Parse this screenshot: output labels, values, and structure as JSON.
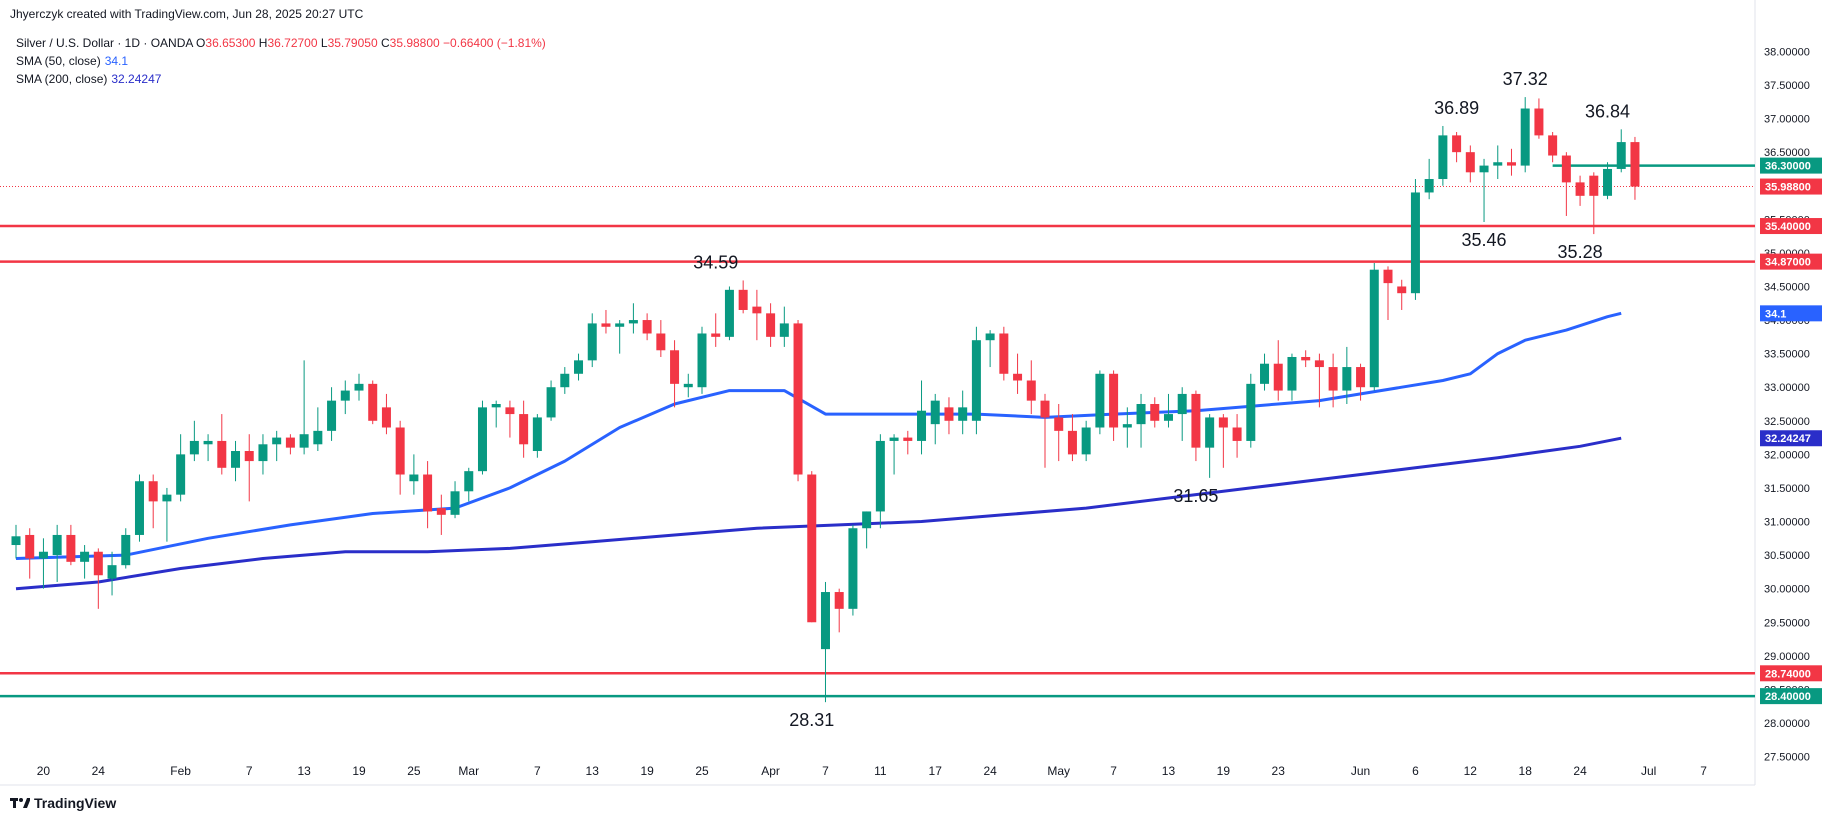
{
  "header": {
    "credit": "Jhyerczyk created with TradingView.com, Jun 28, 2025 20:27 UTC"
  },
  "legend": {
    "symbol": "Silver / U.S. Dollar · 1D · OANDA",
    "o_label": "O",
    "o_value": "36.65300",
    "h_label": "H",
    "h_value": "36.72700",
    "l_label": "L",
    "l_value": "35.79050",
    "c_label": "C",
    "c_value": "35.98800",
    "change": "−0.66400 (−1.81%)",
    "sma50_label": "SMA (50, close)",
    "sma50_value": "34.1",
    "sma200_label": "SMA (200, close)",
    "sma200_value": "32.24247"
  },
  "footer": {
    "logo_text": "TradingView"
  },
  "colors": {
    "up": "#089981",
    "down": "#f23645",
    "sma50": "#2962ff",
    "sma200": "#2a2ec9",
    "support": "#f23645",
    "teal_line": "#089981",
    "grid": "#f0f3fa",
    "text": "#131722"
  },
  "chart_data": {
    "type": "candlestick",
    "ylim": [
      27.3,
      38.2
    ],
    "y_ticks": [
      "27.50000",
      "28.00000",
      "28.50000",
      "29.00000",
      "29.50000",
      "30.00000",
      "30.50000",
      "31.00000",
      "31.50000",
      "32.00000",
      "32.50000",
      "33.00000",
      "33.50000",
      "34.00000",
      "34.50000",
      "35.00000",
      "35.50000",
      "36.00000",
      "36.50000",
      "37.00000",
      "37.50000",
      "38.00000"
    ],
    "x_ticks": [
      {
        "label": "20",
        "index": 2
      },
      {
        "label": "24",
        "index": 6
      },
      {
        "label": "Feb",
        "index": 12
      },
      {
        "label": "7",
        "index": 17
      },
      {
        "label": "13",
        "index": 21
      },
      {
        "label": "19",
        "index": 25
      },
      {
        "label": "25",
        "index": 29
      },
      {
        "label": "Mar",
        "index": 33
      },
      {
        "label": "7",
        "index": 38
      },
      {
        "label": "13",
        "index": 42
      },
      {
        "label": "19",
        "index": 46
      },
      {
        "label": "25",
        "index": 50
      },
      {
        "label": "Apr",
        "index": 55
      },
      {
        "label": "7",
        "index": 59
      },
      {
        "label": "11",
        "index": 63
      },
      {
        "label": "17",
        "index": 67
      },
      {
        "label": "24",
        "index": 71
      },
      {
        "label": "May",
        "index": 76
      },
      {
        "label": "7",
        "index": 80
      },
      {
        "label": "13",
        "index": 84
      },
      {
        "label": "19",
        "index": 88
      },
      {
        "label": "23",
        "index": 92
      },
      {
        "label": "Jun",
        "index": 98
      },
      {
        "label": "6",
        "index": 102
      },
      {
        "label": "12",
        "index": 106
      },
      {
        "label": "18",
        "index": 110
      },
      {
        "label": "24",
        "index": 114
      },
      {
        "label": "Jul",
        "index": 119
      },
      {
        "label": "7",
        "index": 123
      }
    ],
    "candles": [
      {
        "o": 30.65,
        "h": 30.95,
        "l": 30.45,
        "c": 30.78
      },
      {
        "o": 30.8,
        "h": 30.9,
        "l": 30.15,
        "c": 30.45
      },
      {
        "o": 30.45,
        "h": 30.75,
        "l": 30.0,
        "c": 30.55
      },
      {
        "o": 30.5,
        "h": 30.95,
        "l": 30.1,
        "c": 30.8
      },
      {
        "o": 30.8,
        "h": 30.95,
        "l": 30.35,
        "c": 30.4
      },
      {
        "o": 30.4,
        "h": 30.65,
        "l": 30.15,
        "c": 30.55
      },
      {
        "o": 30.55,
        "h": 30.6,
        "l": 29.7,
        "c": 30.2
      },
      {
        "o": 30.15,
        "h": 30.55,
        "l": 29.9,
        "c": 30.35
      },
      {
        "o": 30.35,
        "h": 30.9,
        "l": 30.3,
        "c": 30.8
      },
      {
        "o": 30.8,
        "h": 31.7,
        "l": 30.7,
        "c": 31.6
      },
      {
        "o": 31.6,
        "h": 31.7,
        "l": 30.9,
        "c": 31.3
      },
      {
        "o": 31.3,
        "h": 31.5,
        "l": 30.7,
        "c": 31.4
      },
      {
        "o": 31.4,
        "h": 32.3,
        "l": 31.3,
        "c": 32.0
      },
      {
        "o": 32.0,
        "h": 32.5,
        "l": 31.9,
        "c": 32.2
      },
      {
        "o": 32.15,
        "h": 32.3,
        "l": 31.9,
        "c": 32.2
      },
      {
        "o": 32.2,
        "h": 32.6,
        "l": 31.7,
        "c": 31.8
      },
      {
        "o": 31.8,
        "h": 32.2,
        "l": 31.6,
        "c": 32.05
      },
      {
        "o": 32.05,
        "h": 32.3,
        "l": 31.3,
        "c": 31.9
      },
      {
        "o": 31.9,
        "h": 32.3,
        "l": 31.7,
        "c": 32.15
      },
      {
        "o": 32.15,
        "h": 32.35,
        "l": 31.9,
        "c": 32.25
      },
      {
        "o": 32.25,
        "h": 32.3,
        "l": 32.0,
        "c": 32.1
      },
      {
        "o": 32.1,
        "h": 33.4,
        "l": 32.0,
        "c": 32.3
      },
      {
        "o": 32.15,
        "h": 32.7,
        "l": 32.05,
        "c": 32.35
      },
      {
        "o": 32.35,
        "h": 33.0,
        "l": 32.2,
        "c": 32.8
      },
      {
        "o": 32.8,
        "h": 33.1,
        "l": 32.6,
        "c": 32.95
      },
      {
        "o": 32.95,
        "h": 33.2,
        "l": 32.8,
        "c": 33.05
      },
      {
        "o": 33.05,
        "h": 33.1,
        "l": 32.45,
        "c": 32.5
      },
      {
        "o": 32.7,
        "h": 32.9,
        "l": 32.3,
        "c": 32.4
      },
      {
        "o": 32.4,
        "h": 32.5,
        "l": 31.4,
        "c": 31.7
      },
      {
        "o": 31.6,
        "h": 32.0,
        "l": 31.4,
        "c": 31.7
      },
      {
        "o": 31.7,
        "h": 31.9,
        "l": 30.9,
        "c": 31.15
      },
      {
        "o": 31.2,
        "h": 31.4,
        "l": 30.8,
        "c": 31.1
      },
      {
        "o": 31.1,
        "h": 31.6,
        "l": 31.05,
        "c": 31.45
      },
      {
        "o": 31.45,
        "h": 31.8,
        "l": 31.3,
        "c": 31.75
      },
      {
        "o": 31.75,
        "h": 32.8,
        "l": 31.7,
        "c": 32.7
      },
      {
        "o": 32.7,
        "h": 32.8,
        "l": 32.4,
        "c": 32.75
      },
      {
        "o": 32.7,
        "h": 32.8,
        "l": 32.25,
        "c": 32.6
      },
      {
        "o": 32.6,
        "h": 32.8,
        "l": 31.95,
        "c": 32.15
      },
      {
        "o": 32.05,
        "h": 32.6,
        "l": 31.95,
        "c": 32.55
      },
      {
        "o": 32.55,
        "h": 33.1,
        "l": 32.5,
        "c": 33.0
      },
      {
        "o": 33.0,
        "h": 33.3,
        "l": 32.9,
        "c": 33.2
      },
      {
        "o": 33.2,
        "h": 33.5,
        "l": 33.1,
        "c": 33.4
      },
      {
        "o": 33.4,
        "h": 34.1,
        "l": 33.3,
        "c": 33.95
      },
      {
        "o": 33.95,
        "h": 34.15,
        "l": 33.8,
        "c": 33.9
      },
      {
        "o": 33.9,
        "h": 34.0,
        "l": 33.5,
        "c": 33.95
      },
      {
        "o": 33.95,
        "h": 34.25,
        "l": 33.8,
        "c": 34.0
      },
      {
        "o": 34.0,
        "h": 34.1,
        "l": 33.7,
        "c": 33.8
      },
      {
        "o": 33.8,
        "h": 34.0,
        "l": 33.45,
        "c": 33.55
      },
      {
        "o": 33.55,
        "h": 33.7,
        "l": 32.7,
        "c": 33.05
      },
      {
        "o": 33.0,
        "h": 33.2,
        "l": 32.85,
        "c": 33.05
      },
      {
        "o": 33.0,
        "h": 33.9,
        "l": 32.9,
        "c": 33.8
      },
      {
        "o": 33.8,
        "h": 34.1,
        "l": 33.6,
        "c": 33.75
      },
      {
        "o": 33.75,
        "h": 34.5,
        "l": 33.7,
        "c": 34.45
      },
      {
        "o": 34.45,
        "h": 34.59,
        "l": 34.1,
        "c": 34.15
      },
      {
        "o": 34.2,
        "h": 34.45,
        "l": 33.7,
        "c": 34.1
      },
      {
        "o": 34.1,
        "h": 34.25,
        "l": 33.6,
        "c": 33.75
      },
      {
        "o": 33.75,
        "h": 34.2,
        "l": 33.6,
        "c": 33.95
      },
      {
        "o": 33.95,
        "h": 34.0,
        "l": 31.6,
        "c": 31.7
      },
      {
        "o": 31.7,
        "h": 31.75,
        "l": 29.5,
        "c": 29.5
      },
      {
        "o": 29.1,
        "h": 30.1,
        "l": 28.31,
        "c": 29.95
      },
      {
        "o": 29.95,
        "h": 30.0,
        "l": 29.35,
        "c": 29.7
      },
      {
        "o": 29.7,
        "h": 30.95,
        "l": 29.6,
        "c": 30.9
      },
      {
        "o": 30.9,
        "h": 31.15,
        "l": 30.6,
        "c": 31.15
      },
      {
        "o": 31.15,
        "h": 32.3,
        "l": 30.9,
        "c": 32.2
      },
      {
        "o": 32.2,
        "h": 32.3,
        "l": 31.7,
        "c": 32.25
      },
      {
        "o": 32.25,
        "h": 32.35,
        "l": 32.0,
        "c": 32.2
      },
      {
        "o": 32.2,
        "h": 33.1,
        "l": 32.0,
        "c": 32.65
      },
      {
        "o": 32.45,
        "h": 32.9,
        "l": 32.15,
        "c": 32.8
      },
      {
        "o": 32.7,
        "h": 32.85,
        "l": 32.3,
        "c": 32.5
      },
      {
        "o": 32.5,
        "h": 32.95,
        "l": 32.3,
        "c": 32.7
      },
      {
        "o": 32.5,
        "h": 33.9,
        "l": 32.3,
        "c": 33.7
      },
      {
        "o": 33.7,
        "h": 33.85,
        "l": 33.3,
        "c": 33.8
      },
      {
        "o": 33.8,
        "h": 33.9,
        "l": 33.1,
        "c": 33.2
      },
      {
        "o": 33.2,
        "h": 33.5,
        "l": 32.9,
        "c": 33.1
      },
      {
        "o": 33.1,
        "h": 33.4,
        "l": 32.6,
        "c": 32.8
      },
      {
        "o": 32.8,
        "h": 32.9,
        "l": 31.8,
        "c": 32.55
      },
      {
        "o": 32.55,
        "h": 32.75,
        "l": 31.9,
        "c": 32.35
      },
      {
        "o": 32.35,
        "h": 32.6,
        "l": 31.9,
        "c": 32.0
      },
      {
        "o": 32.0,
        "h": 32.5,
        "l": 31.9,
        "c": 32.4
      },
      {
        "o": 32.4,
        "h": 33.25,
        "l": 32.3,
        "c": 33.2
      },
      {
        "o": 33.2,
        "h": 33.25,
        "l": 32.2,
        "c": 32.4
      },
      {
        "o": 32.4,
        "h": 32.7,
        "l": 32.1,
        "c": 32.45
      },
      {
        "o": 32.45,
        "h": 32.9,
        "l": 32.1,
        "c": 32.75
      },
      {
        "o": 32.75,
        "h": 32.85,
        "l": 32.4,
        "c": 32.5
      },
      {
        "o": 32.5,
        "h": 32.9,
        "l": 32.4,
        "c": 32.6
      },
      {
        "o": 32.6,
        "h": 33.0,
        "l": 32.2,
        "c": 32.9
      },
      {
        "o": 32.9,
        "h": 32.95,
        "l": 31.9,
        "c": 32.1
      },
      {
        "o": 32.1,
        "h": 32.6,
        "l": 31.65,
        "c": 32.55
      },
      {
        "o": 32.55,
        "h": 32.6,
        "l": 31.8,
        "c": 32.4
      },
      {
        "o": 32.4,
        "h": 32.6,
        "l": 31.95,
        "c": 32.2
      },
      {
        "o": 32.2,
        "h": 33.2,
        "l": 32.1,
        "c": 33.05
      },
      {
        "o": 33.05,
        "h": 33.5,
        "l": 32.95,
        "c": 33.35
      },
      {
        "o": 33.35,
        "h": 33.7,
        "l": 32.8,
        "c": 32.95
      },
      {
        "o": 32.95,
        "h": 33.5,
        "l": 32.8,
        "c": 33.45
      },
      {
        "o": 33.45,
        "h": 33.55,
        "l": 33.3,
        "c": 33.4
      },
      {
        "o": 33.4,
        "h": 33.5,
        "l": 32.7,
        "c": 33.3
      },
      {
        "o": 33.3,
        "h": 33.5,
        "l": 32.7,
        "c": 32.95
      },
      {
        "o": 32.95,
        "h": 33.6,
        "l": 32.75,
        "c": 33.3
      },
      {
        "o": 33.3,
        "h": 33.35,
        "l": 32.8,
        "c": 33.0
      },
      {
        "o": 33.0,
        "h": 34.85,
        "l": 32.95,
        "c": 34.75
      },
      {
        "o": 34.75,
        "h": 34.8,
        "l": 34.0,
        "c": 34.55
      },
      {
        "o": 34.5,
        "h": 34.6,
        "l": 34.15,
        "c": 34.4
      },
      {
        "o": 34.4,
        "h": 36.1,
        "l": 34.3,
        "c": 35.9
      },
      {
        "o": 35.9,
        "h": 36.4,
        "l": 35.8,
        "c": 36.1
      },
      {
        "o": 36.1,
        "h": 36.89,
        "l": 36.0,
        "c": 36.75
      },
      {
        "o": 36.75,
        "h": 36.8,
        "l": 36.35,
        "c": 36.5
      },
      {
        "o": 36.5,
        "h": 36.6,
        "l": 36.05,
        "c": 36.2
      },
      {
        "o": 36.2,
        "h": 36.4,
        "l": 35.46,
        "c": 36.3
      },
      {
        "o": 36.3,
        "h": 36.6,
        "l": 36.1,
        "c": 36.35
      },
      {
        "o": 36.35,
        "h": 36.55,
        "l": 36.15,
        "c": 36.3
      },
      {
        "o": 36.3,
        "h": 37.32,
        "l": 36.2,
        "c": 37.15
      },
      {
        "o": 37.15,
        "h": 37.3,
        "l": 36.7,
        "c": 36.75
      },
      {
        "o": 36.75,
        "h": 36.8,
        "l": 36.35,
        "c": 36.45
      },
      {
        "o": 36.45,
        "h": 36.5,
        "l": 35.55,
        "c": 36.05
      },
      {
        "o": 36.05,
        "h": 36.15,
        "l": 35.7,
        "c": 35.85
      },
      {
        "o": 36.15,
        "h": 36.2,
        "l": 35.28,
        "c": 35.85
      },
      {
        "o": 35.85,
        "h": 36.35,
        "l": 35.8,
        "c": 36.25
      },
      {
        "o": 36.25,
        "h": 36.84,
        "l": 36.2,
        "c": 36.65
      },
      {
        "o": 36.65,
        "h": 36.727,
        "l": 35.7905,
        "c": 35.988
      }
    ],
    "sma50": [
      [
        0,
        30.45
      ],
      [
        8,
        30.5
      ],
      [
        14,
        30.75
      ],
      [
        20,
        30.95
      ],
      [
        26,
        31.12
      ],
      [
        32,
        31.2
      ],
      [
        36,
        31.5
      ],
      [
        40,
        31.9
      ],
      [
        44,
        32.4
      ],
      [
        48,
        32.75
      ],
      [
        52,
        32.95
      ],
      [
        56,
        32.95
      ],
      [
        59,
        32.6
      ],
      [
        64,
        32.6
      ],
      [
        70,
        32.6
      ],
      [
        75,
        32.55
      ],
      [
        80,
        32.6
      ],
      [
        86,
        32.65
      ],
      [
        92,
        32.75
      ],
      [
        95,
        32.8
      ],
      [
        98,
        32.9
      ],
      [
        101,
        33.0
      ],
      [
        104,
        33.1
      ],
      [
        106,
        33.2
      ],
      [
        108,
        33.5
      ],
      [
        110,
        33.7
      ],
      [
        113,
        33.85
      ],
      [
        116,
        34.05
      ],
      [
        117,
        34.1
      ]
    ],
    "sma200": [
      [
        0,
        30.0
      ],
      [
        6,
        30.1
      ],
      [
        12,
        30.3
      ],
      [
        18,
        30.45
      ],
      [
        24,
        30.55
      ],
      [
        30,
        30.55
      ],
      [
        36,
        30.6
      ],
      [
        42,
        30.7
      ],
      [
        48,
        30.8
      ],
      [
        54,
        30.9
      ],
      [
        60,
        30.95
      ],
      [
        66,
        31.0
      ],
      [
        72,
        31.1
      ],
      [
        78,
        31.2
      ],
      [
        84,
        31.35
      ],
      [
        90,
        31.5
      ],
      [
        96,
        31.65
      ],
      [
        102,
        31.8
      ],
      [
        108,
        31.95
      ],
      [
        114,
        32.12
      ],
      [
        117,
        32.24
      ]
    ],
    "hlines": [
      {
        "value": 36.3,
        "color": "#089981",
        "from_index": 112,
        "label": "36.30000"
      },
      {
        "value": 35.4,
        "color": "#f23645",
        "from_index": 0,
        "label": "35.40000"
      },
      {
        "value": 34.87,
        "color": "#f23645",
        "from_index": 0,
        "label": "34.87000"
      },
      {
        "value": 28.74,
        "color": "#f23645",
        "from_index": 0,
        "label": "28.74000"
      },
      {
        "value": 28.4,
        "color": "#089981",
        "from_index": 0,
        "label": "28.40000"
      }
    ],
    "last_price": {
      "value": 35.988,
      "label": "35.98800"
    },
    "sma50_badge": {
      "value": 34.1,
      "label": "34.1"
    },
    "sma200_badge": {
      "value": 32.24,
      "label": "32.24247"
    },
    "annotations": [
      {
        "text": "36.89",
        "index": 105,
        "value": 36.89,
        "pos": "above"
      },
      {
        "text": "37.32",
        "index": 110,
        "value": 37.32,
        "pos": "above"
      },
      {
        "text": "36.84",
        "index": 116,
        "value": 36.84,
        "pos": "above"
      },
      {
        "text": "35.46",
        "index": 107,
        "value": 35.46,
        "pos": "below"
      },
      {
        "text": "35.28",
        "index": 114,
        "value": 35.28,
        "pos": "below"
      },
      {
        "text": "34.59",
        "index": 51,
        "value": 34.59,
        "pos": "above"
      },
      {
        "text": "31.65",
        "index": 86,
        "value": 31.65,
        "pos": "below"
      },
      {
        "text": "28.31",
        "index": 58,
        "value": 28.31,
        "pos": "below"
      }
    ]
  }
}
